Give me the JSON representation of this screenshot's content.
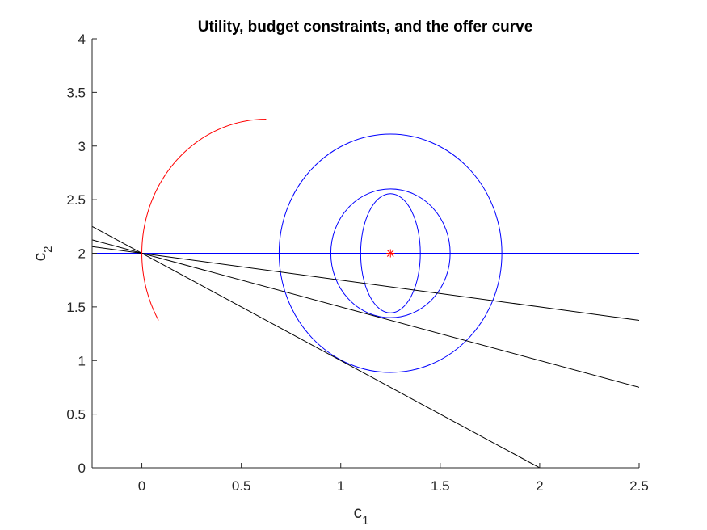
{
  "chart_data": {
    "type": "line",
    "title": "Utility, budget constraints, and the offer curve",
    "xlabel": {
      "base": "c",
      "sub": "1"
    },
    "ylabel": {
      "base": "c",
      "sub": "2"
    },
    "xlim": [
      -0.25,
      2.5
    ],
    "ylim": [
      0,
      4
    ],
    "xticks": [
      0,
      0.5,
      1,
      1.5,
      2,
      2.5
    ],
    "xtick_labels": [
      "0",
      "0.5",
      "1",
      "1.5",
      "2",
      "2.5"
    ],
    "yticks": [
      0,
      0.5,
      1,
      1.5,
      2,
      2.5,
      3,
      3.5,
      4
    ],
    "ytick_labels": [
      "0",
      "0.5",
      "1",
      "1.5",
      "2",
      "2.5",
      "3",
      "3.5",
      "4"
    ],
    "grid": false,
    "colors": {
      "indifference": "#0000ff",
      "budget": "#000000",
      "offer": "#ff0000",
      "axes": "#262626"
    },
    "endowment": [
      0,
      2
    ],
    "bliss_point": [
      1.25,
      2
    ],
    "budget_lines": [
      {
        "slope": -1.0
      },
      {
        "slope": -0.5
      },
      {
        "slope": -0.25
      }
    ],
    "indifference_circles": [
      {
        "radius": 0.556,
        "flat_half_width": 0.15
      },
      {
        "radius": 0.6,
        "flat_half_width": 0.3
      },
      {
        "radius": 1.111,
        "flat_half_width": 0.56
      }
    ],
    "horizontal_line_y": 2,
    "offer_curve": {
      "center": [
        0.625,
        2
      ],
      "radius_x": 0.625,
      "radius_y": 1.25,
      "from_deg": 60,
      "to_deg": 180
    }
  }
}
